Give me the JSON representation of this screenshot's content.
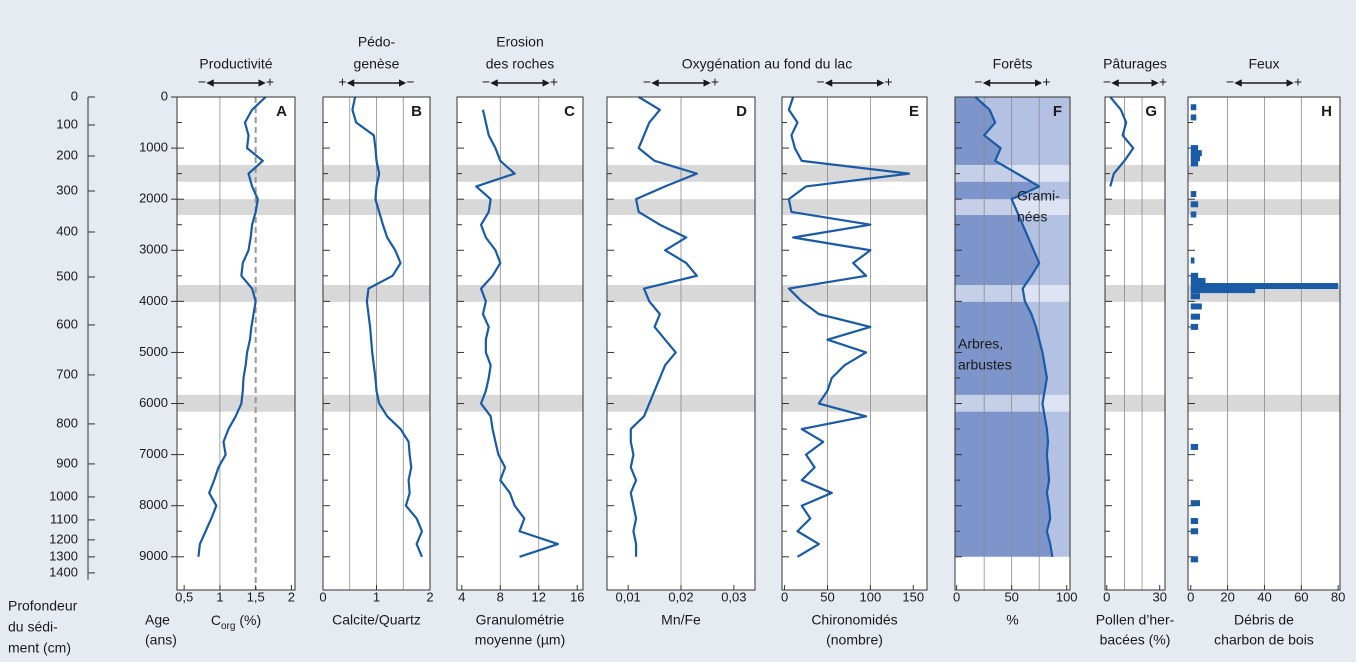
{
  "chart_data": {
    "type": "multi_panel",
    "color": "#1a5ba6",
    "band_color": "#d8d8d8",
    "ylim": [
      0,
      9650
    ],
    "ylabel": [
      "Age",
      "(ans)"
    ],
    "yticks": [
      0,
      1000,
      2000,
      3000,
      4000,
      5000,
      6000,
      7000,
      8000,
      9000
    ],
    "yticks_minor": [
      500,
      1500,
      2500,
      3500,
      4500,
      5500,
      6500,
      7500,
      8500
    ],
    "age": [
      0,
      250,
      500,
      750,
      1000,
      1250,
      1500,
      1750,
      2000,
      2250,
      2500,
      2750,
      3000,
      3250,
      3500,
      3750,
      4000,
      4250,
      4500,
      4750,
      5000,
      5250,
      5500,
      5750,
      6000,
      6250,
      6500,
      6750,
      7000,
      7250,
      7500,
      7750,
      8000,
      8250,
      8500,
      8750,
      9000
    ],
    "depth_axis": {
      "label": [
        "Profondeur",
        "du sédi-",
        "ment (cm)"
      ],
      "ticks": [
        {
          "value": 0,
          "age": 0
        },
        {
          "value": 100,
          "age": 548
        },
        {
          "value": 200,
          "age": 1155
        },
        {
          "value": 300,
          "age": 1840
        },
        {
          "value": 400,
          "age": 2642
        },
        {
          "value": 500,
          "age": 3523
        },
        {
          "value": 600,
          "age": 4462
        },
        {
          "value": 700,
          "age": 5440
        },
        {
          "value": 800,
          "age": 6399
        },
        {
          "value": 900,
          "age": 7182
        },
        {
          "value": 1000,
          "age": 7828
        },
        {
          "value": 1100,
          "age": 8278
        },
        {
          "value": 1200,
          "age": 8669
        },
        {
          "value": 1300,
          "age": 9002
        },
        {
          "value": 1400,
          "age": 9315
        }
      ]
    },
    "bands": [
      [
        1330,
        1660
      ],
      [
        2000,
        2310
      ],
      [
        3680,
        4010
      ],
      [
        5830,
        6160
      ]
    ],
    "panels": [
      {
        "type": "line",
        "letter": "A",
        "heading": [
          "Productivité"
        ],
        "arrow": [
          "−",
          "+"
        ],
        "xlabel": [
          [
            {
              "text": "C"
            },
            {
              "text": "org",
              "sub": true
            },
            {
              "text": " (%)"
            }
          ]
        ],
        "xlim": [
          0.4,
          2.05
        ],
        "xticks": [
          {
            "value": 0.5,
            "label": "0,5"
          },
          1,
          {
            "value": 1.5,
            "label": "1,5"
          },
          2
        ],
        "grid": [
          1
        ],
        "reference_line": 1.5,
        "values": [
          1.64,
          1.45,
          1.35,
          1.4,
          1.38,
          1.6,
          1.4,
          1.45,
          1.53,
          1.5,
          1.45,
          1.43,
          1.4,
          1.32,
          1.3,
          1.45,
          1.5,
          1.47,
          1.44,
          1.42,
          1.38,
          1.36,
          1.33,
          1.32,
          1.3,
          1.22,
          1.12,
          1.05,
          1.08,
          0.98,
          0.92,
          0.85,
          0.95,
          0.88,
          0.8,
          0.72,
          0.7
        ]
      },
      {
        "type": "line",
        "letter": "B",
        "heading": [
          "Pédo-",
          "genèse"
        ],
        "arrow": [
          "+",
          "−"
        ],
        "xlabel": [
          "Calcite/Quartz"
        ],
        "xlim": [
          0,
          2
        ],
        "xticks": [
          0,
          1,
          2
        ],
        "grid": [
          0.5,
          1,
          1.5
        ],
        "values": [
          0.6,
          0.55,
          0.62,
          0.95,
          0.98,
          1.0,
          1.05,
          1.0,
          0.98,
          1.05,
          1.12,
          1.2,
          1.35,
          1.45,
          1.3,
          0.85,
          0.82,
          0.85,
          0.88,
          0.9,
          0.92,
          0.95,
          0.98,
          1.0,
          1.05,
          1.2,
          1.45,
          1.6,
          1.62,
          1.65,
          1.6,
          1.62,
          1.55,
          1.75,
          1.85,
          1.75,
          1.85
        ]
      },
      {
        "type": "line",
        "letter": "C",
        "heading": [
          "Erosion",
          "des roches"
        ],
        "arrow": [
          "−",
          "+"
        ],
        "xlabel": [
          "Granulométrie",
          "moyenne (µm)"
        ],
        "xlim": [
          3.5,
          16.6
        ],
        "xticks": [
          4,
          8,
          12,
          16
        ],
        "grid": [
          8,
          12
        ],
        "values": [
          null,
          6.2,
          6.5,
          6.8,
          7.5,
          8,
          9.5,
          5.5,
          7,
          6.8,
          6,
          6.5,
          7.5,
          8,
          7.2,
          6,
          6.5,
          6.2,
          6.8,
          6.5,
          6.5,
          7,
          6.8,
          6.5,
          6,
          7,
          7.2,
          7.5,
          7.8,
          8.5,
          8,
          9,
          9.5,
          10.5,
          10,
          14,
          10
        ]
      },
      {
        "type": "line",
        "letter": "D",
        "heading": [
          "Oxygénation au fond du lac"
        ],
        "arrow": [
          "−",
          "+"
        ],
        "xlabel": [
          "Mn/Fe"
        ],
        "xlim": [
          0.006,
          0.034
        ],
        "xticks": [
          {
            "value": 0.01,
            "label": "0,01"
          },
          {
            "value": 0.02,
            "label": "0,02"
          },
          {
            "value": 0.03,
            "label": "0,03"
          }
        ],
        "grid": [
          0.02
        ],
        "values": [
          0.012,
          0.016,
          0.014,
          0.013,
          0.012,
          0.015,
          0.023,
          0.017,
          0.0115,
          0.012,
          0.016,
          0.021,
          0.017,
          0.021,
          0.023,
          0.013,
          0.014,
          0.016,
          0.015,
          0.017,
          0.019,
          0.017,
          0.016,
          0.015,
          0.014,
          0.013,
          0.0105,
          0.0105,
          0.011,
          0.0105,
          0.0115,
          0.0105,
          0.011,
          0.0115,
          0.011,
          0.0115,
          0.0115
        ]
      },
      {
        "type": "line",
        "letter": "E",
        "arrow": [
          "−",
          "+"
        ],
        "xlabel": [
          "Chironomidés",
          "(nombre)"
        ],
        "xlim": [
          -3,
          166
        ],
        "xticks": [
          0,
          50,
          100,
          150
        ],
        "grid": [
          50,
          100
        ],
        "values": [
          10,
          5,
          15,
          8,
          12,
          20,
          145,
          25,
          5,
          8,
          100,
          10,
          100,
          80,
          95,
          5,
          20,
          40,
          100,
          50,
          95,
          70,
          55,
          50,
          40,
          95,
          20,
          45,
          25,
          35,
          20,
          55,
          20,
          30,
          15,
          40,
          15
        ]
      },
      {
        "type": "area",
        "letter": "F",
        "heading": [
          "Forêts"
        ],
        "arrow": [
          "−",
          "+"
        ],
        "xlabel": [
          "%"
        ],
        "xlim": [
          -1.5,
          103
        ],
        "xticks": [
          0,
          50,
          100
        ],
        "grid": [
          25,
          50,
          75
        ],
        "fill_colors": [
          "#7e95cb",
          "#b3c2e3"
        ],
        "annotations": [
          [
            "Grami-",
            "nées"
          ],
          [
            "Arbres,",
            "arbustes"
          ]
        ],
        "values": [
          17,
          30,
          35,
          25,
          40,
          35,
          55,
          75,
          50,
          55,
          60,
          65,
          70,
          75,
          68,
          60,
          62,
          68,
          72,
          75,
          78,
          80,
          82,
          80,
          78,
          80,
          82,
          83,
          82,
          83,
          84,
          82,
          84,
          85,
          82,
          85,
          87
        ]
      },
      {
        "type": "line",
        "letter": "G",
        "heading": [
          "Pâturages"
        ],
        "arrow": [
          "−",
          "+"
        ],
        "xlabel": [
          "Pollen d’her-",
          "bacées (%)"
        ],
        "xlim": [
          -1,
          33
        ],
        "xticks": [
          0,
          30
        ],
        "grid": [
          10,
          20
        ],
        "values": [
          2,
          8,
          11,
          9,
          15,
          10,
          4,
          2,
          null,
          null,
          null,
          null,
          null,
          null,
          null,
          null,
          null,
          null,
          null,
          null,
          null,
          null,
          null,
          null,
          null,
          null,
          null,
          null,
          null,
          null,
          null,
          null,
          null,
          null,
          null,
          null,
          null
        ]
      },
      {
        "type": "bar",
        "letter": "H",
        "heading": [
          "Feux"
        ],
        "arrow": [
          "−",
          "+"
        ],
        "xlabel": [
          "Débris de",
          "charbon de bois"
        ],
        "xlim": [
          -1.5,
          81
        ],
        "xticks": [
          0,
          20,
          40,
          60,
          80
        ],
        "grid": [
          20,
          40,
          60
        ],
        "x": [
          200,
          400,
          1000,
          1100,
          1200,
          1300,
          1900,
          2100,
          2300,
          3200,
          3500,
          3600,
          3700,
          3780,
          3900,
          4100,
          4300,
          4500,
          6850,
          7950,
          8300,
          8500,
          9050
        ],
        "values": [
          3,
          3,
          4,
          6,
          5,
          4,
          3,
          4,
          3,
          2,
          4,
          8,
          80,
          35,
          5,
          6,
          5,
          4,
          4,
          5,
          4,
          4,
          4
        ]
      }
    ]
  }
}
